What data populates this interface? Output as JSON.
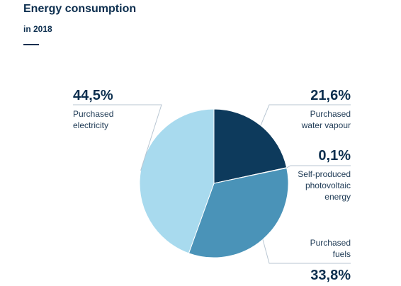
{
  "header": {
    "title": "Energy consumption",
    "subtitle": "in 2018"
  },
  "chart_data": {
    "type": "pie",
    "title": "Energy consumption",
    "subtitle": "in 2018",
    "slices": [
      {
        "label": "Purchased water vapour",
        "value": 21.6,
        "display": "21,6%",
        "color": "#0d3a5c",
        "label_lines": [
          "Purchased",
          "water vapour"
        ]
      },
      {
        "label": "Self-produced photovoltaic energy",
        "value": 0.1,
        "display": "0,1%",
        "color": "#dfe8f0",
        "label_lines": [
          "Self-produced",
          "photovoltaic",
          "energy"
        ]
      },
      {
        "label": "Purchased fuels",
        "value": 33.8,
        "display": "33,8%",
        "color": "#4a93b8",
        "label_lines": [
          "Purchased",
          "fuels"
        ]
      },
      {
        "label": "Purchased electricity",
        "value": 44.5,
        "display": "44,5%",
        "color": "#a8daee",
        "label_lines": [
          "Purchased",
          "electricity"
        ]
      }
    ]
  }
}
